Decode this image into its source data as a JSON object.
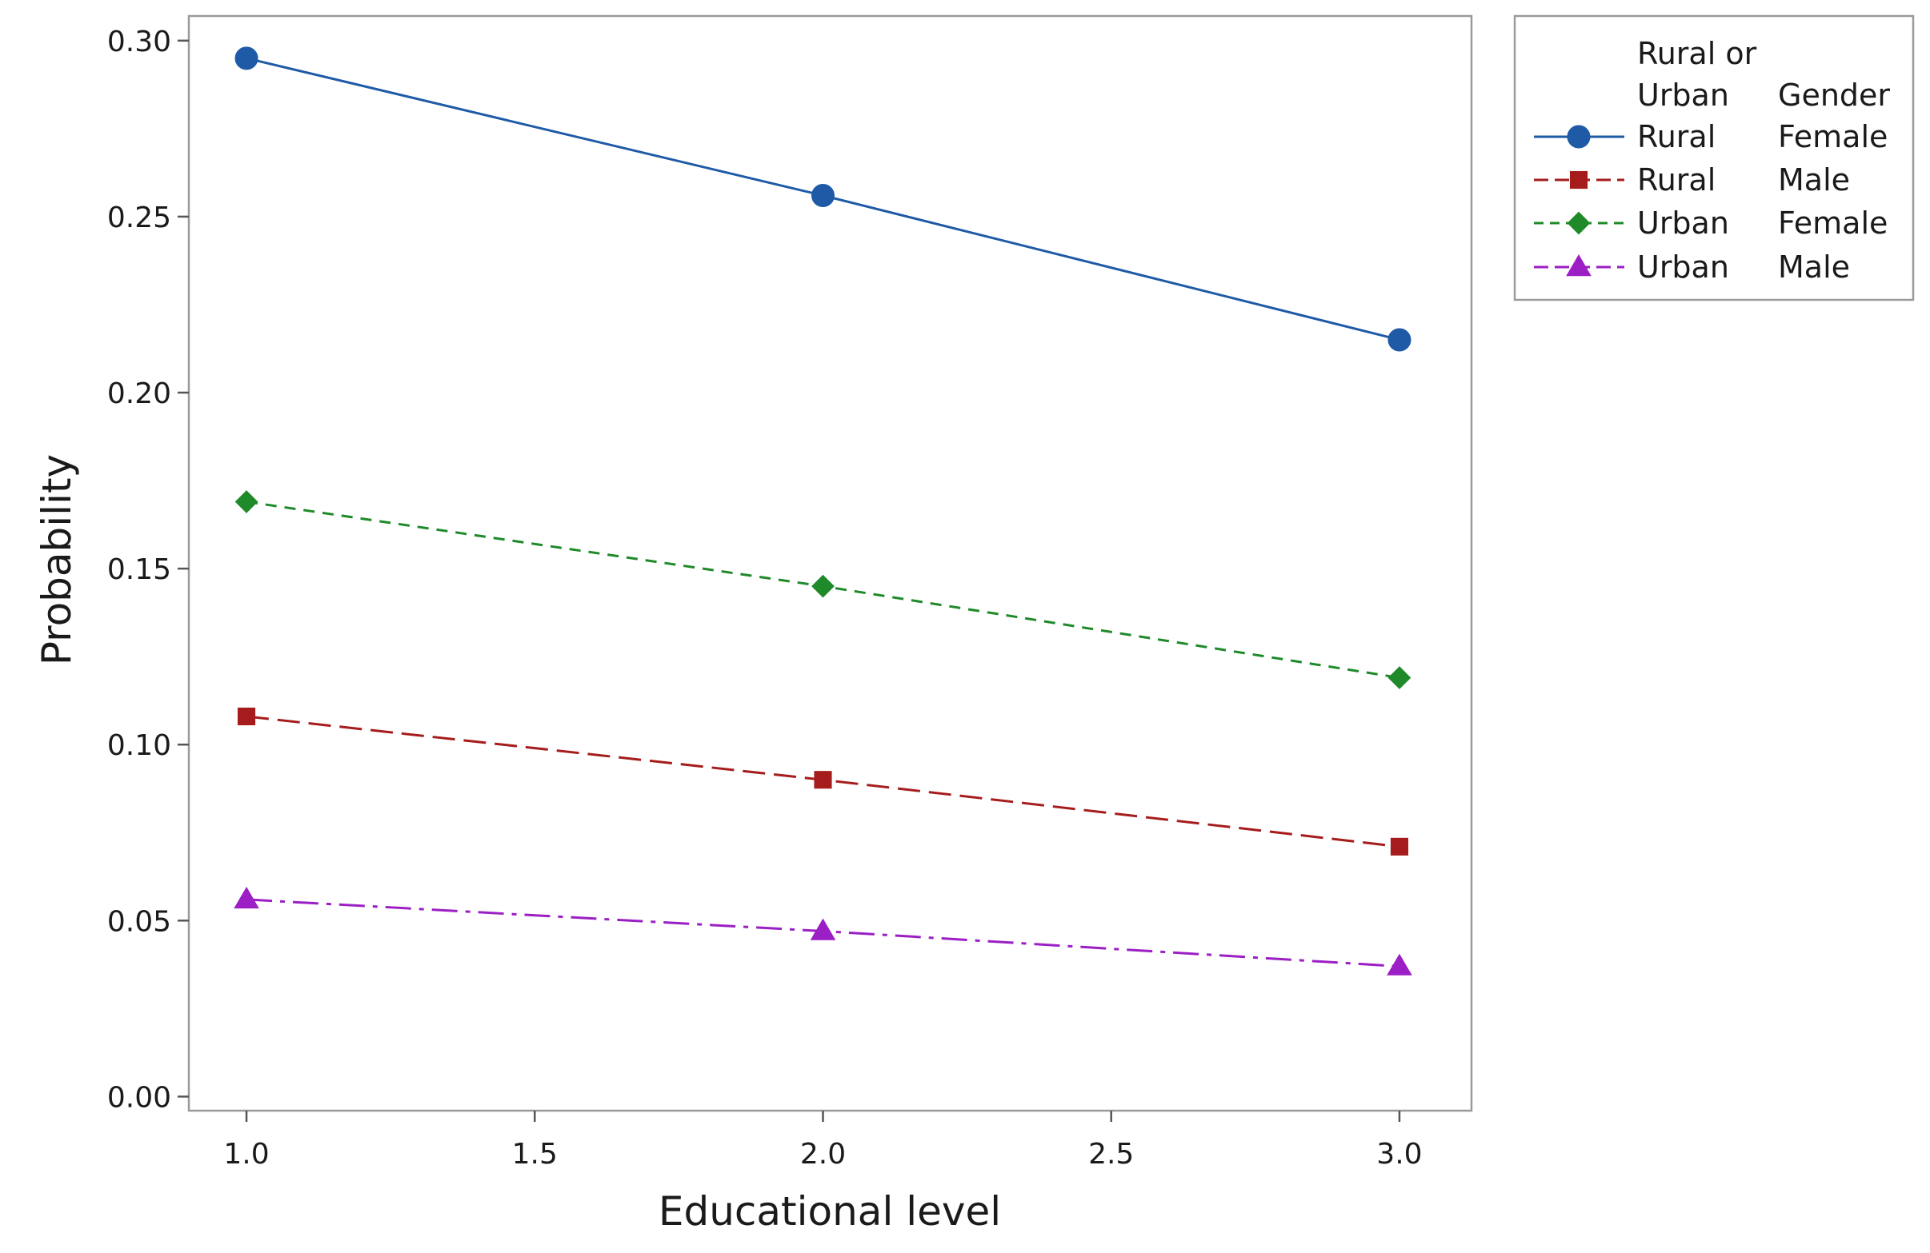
{
  "chart_data": {
    "type": "line",
    "title": "",
    "xlabel": "Educational level",
    "ylabel": "Probability",
    "x": [
      1.0,
      2.0,
      3.0
    ],
    "xlim": [
      0.9,
      3.125
    ],
    "ylim": [
      -0.004,
      0.307
    ],
    "xticks": [
      1.0,
      1.5,
      2.0,
      2.5,
      3.0
    ],
    "xtick_labels": [
      "1.0",
      "1.5",
      "2.0",
      "2.5",
      "3.0"
    ],
    "yticks": [
      0.0,
      0.05,
      0.1,
      0.15,
      0.2,
      0.25,
      0.3
    ],
    "ytick_labels": [
      "0.00",
      "0.05",
      "0.10",
      "0.15",
      "0.20",
      "0.25",
      "0.30"
    ],
    "grid": false,
    "legend": {
      "placement": "right-top",
      "header_col1_line1": "Rural or",
      "header_col1_line2": "Urban",
      "header_col2": "Gender"
    },
    "series": [
      {
        "col1": "Rural",
        "col2": "Female",
        "values": [
          0.295,
          0.256,
          0.215
        ],
        "color": "#1f5aa6",
        "marker": "circle",
        "dash": "solid"
      },
      {
        "col1": "Rural",
        "col2": "Male",
        "values": [
          0.108,
          0.09,
          0.071
        ],
        "color": "#a61c1c",
        "marker": "square",
        "dash": "longdash"
      },
      {
        "col1": "Urban",
        "col2": "Female",
        "values": [
          0.169,
          0.145,
          0.119
        ],
        "color": "#1f8a2a",
        "marker": "diamond",
        "dash": "dash"
      },
      {
        "col1": "Urban",
        "col2": "Male",
        "values": [
          0.056,
          0.047,
          0.037
        ],
        "color": "#9b1fc4",
        "marker": "triangle",
        "dash": "dashdot"
      }
    ]
  }
}
